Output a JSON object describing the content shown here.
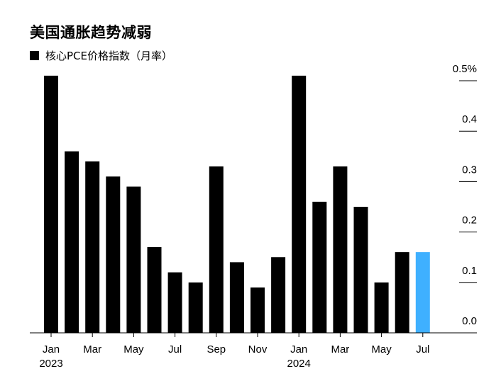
{
  "chart_data": {
    "type": "bar",
    "title": "美国通胀趋势减弱",
    "categories": [
      "Jan 2023",
      "Feb 2023",
      "Mar 2023",
      "Apr 2023",
      "May 2023",
      "Jun 2023",
      "Jul 2023",
      "Aug 2023",
      "Sep 2023",
      "Oct 2023",
      "Nov 2023",
      "Dec 2023",
      "Jan 2024",
      "Feb 2024",
      "Mar 2024",
      "Apr 2024",
      "May 2024",
      "Jun 2024",
      "Jul 2024"
    ],
    "series": [
      {
        "name": "核心PCE价格指数（月率）",
        "color": "#000000",
        "values": [
          0.51,
          0.36,
          0.34,
          0.31,
          0.29,
          0.17,
          0.12,
          0.1,
          0.33,
          0.14,
          0.09,
          0.15,
          0.51,
          0.26,
          0.33,
          0.25,
          0.1,
          0.16,
          0.16
        ]
      }
    ],
    "highlight": {
      "index": 18,
      "color": "#3fb0ff"
    },
    "x_tick_labels": [
      {
        "index": 0,
        "label": "Jan",
        "sublabel": "2023"
      },
      {
        "index": 2,
        "label": "Mar"
      },
      {
        "index": 4,
        "label": "May"
      },
      {
        "index": 6,
        "label": "Jul"
      },
      {
        "index": 8,
        "label": "Sep"
      },
      {
        "index": 10,
        "label": "Nov"
      },
      {
        "index": 12,
        "label": "Jan",
        "sublabel": "2024"
      },
      {
        "index": 14,
        "label": "Mar"
      },
      {
        "index": 16,
        "label": "May"
      },
      {
        "index": 18,
        "label": "Jul"
      }
    ],
    "y_ticks": [
      {
        "value": 0.0,
        "label": "0.0"
      },
      {
        "value": 0.1,
        "label": "0.1"
      },
      {
        "value": 0.2,
        "label": "0.2"
      },
      {
        "value": 0.3,
        "label": "0.3"
      },
      {
        "value": 0.4,
        "label": "0.4"
      },
      {
        "value": 0.5,
        "label": "0.5%"
      }
    ],
    "ylim": [
      0,
      0.5
    ],
    "yaxis_side": "right",
    "legend_position": "top-left"
  }
}
